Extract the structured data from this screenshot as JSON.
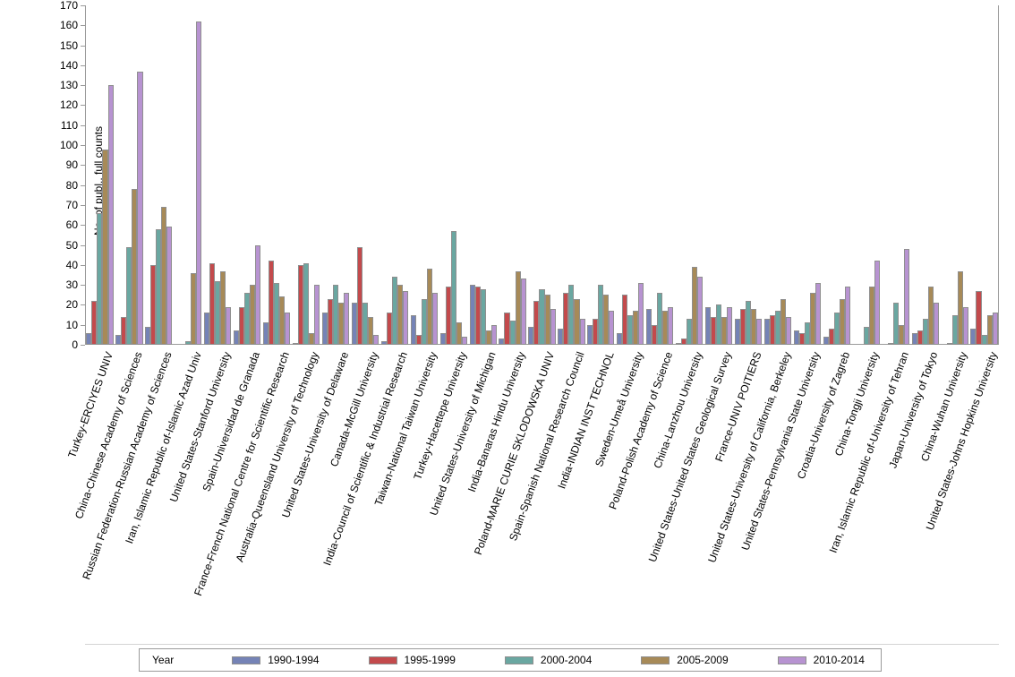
{
  "chart_data": {
    "type": "bar",
    "title": "",
    "ylabel": "No. of publ., full counts",
    "xlabel": "",
    "ylim": [
      0,
      170
    ],
    "ytick_step": 10,
    "yticks": [
      0,
      10,
      20,
      30,
      40,
      50,
      60,
      70,
      80,
      90,
      100,
      110,
      120,
      130,
      140,
      150,
      160,
      170
    ],
    "grid": false,
    "legend_title": "Year",
    "legend_position": "bottom",
    "bar_outline_color": "#8f8f8f",
    "axis_color": "#9a9a9a",
    "categories": [
      "Turkey-ERCIYES UNIV",
      "China-Chinese Academy of Sciences",
      "Russian Federation-Russian Academy of Sciences",
      "Iran, Islamic Republic of-Islamic Azad Univ",
      "United States-Stanford University",
      "Spain-Universidad de Granada",
      "France-French National Centre for Scientific Research",
      "Australia-Queensland University of Technology",
      "United States-University of Delaware",
      "Canada-McGill University",
      "India-Council of Scientific & Industrial Research",
      "Taiwan-National Taiwan University",
      "Turkey-Hacettepe University",
      "United States-University of Michigan",
      "India-Banaras Hindu University",
      "Poland-MARIE CURIE SKLODOWSKA UNIV",
      "Spain-Spanish National Research Council",
      "India-INDIAN INST TECHNOL",
      "Sweden-Umeå University",
      "Poland-Polish Academy of Science",
      "China-Lanzhou University",
      "United States-United States Geological Survey",
      "France-UNIV POITIERS",
      "United States-University of California, Berkeley",
      "United States-Pennsylvania State University",
      "Croatia-University of Zagreb",
      "China-Tongji University",
      "Iran, Islamic Republic of-University of Tehran",
      "Japan-University of Tokyo",
      "China-Wuhan University",
      "United States-Johns Hopkins University"
    ],
    "series": [
      {
        "name": "1990-1994",
        "color": "#7583b6",
        "values": [
          6,
          5,
          9,
          0,
          16,
          7,
          11,
          1,
          16,
          21,
          2,
          15,
          6,
          30,
          3,
          9,
          8,
          10,
          6,
          18,
          1,
          19,
          13,
          13,
          7,
          4,
          0,
          0,
          6,
          0,
          8
        ]
      },
      {
        "name": "1995-1999",
        "color": "#c34a4c",
        "values": [
          22,
          14,
          40,
          0,
          41,
          19,
          42,
          40,
          23,
          49,
          16,
          5,
          29,
          29,
          16,
          22,
          26,
          13,
          25,
          10,
          3,
          14,
          18,
          15,
          6,
          8,
          0,
          1,
          7,
          1,
          27
        ]
      },
      {
        "name": "2000-2004",
        "color": "#6aa7a1",
        "values": [
          66,
          49,
          58,
          2,
          32,
          26,
          31,
          41,
          30,
          21,
          34,
          23,
          57,
          28,
          12,
          28,
          30,
          30,
          15,
          26,
          13,
          20,
          22,
          17,
          11,
          16,
          9,
          21,
          13,
          15,
          5
        ]
      },
      {
        "name": "2005-2009",
        "color": "#a78a58",
        "values": [
          98,
          78,
          69,
          36,
          37,
          30,
          24,
          6,
          21,
          14,
          30,
          38,
          11,
          7,
          37,
          25,
          23,
          25,
          17,
          17,
          39,
          14,
          18,
          23,
          26,
          23,
          29,
          10,
          29,
          37,
          15
        ]
      },
      {
        "name": "2010-2014",
        "color": "#b793d1",
        "values": [
          130,
          137,
          59,
          162,
          19,
          50,
          16,
          30,
          26,
          5,
          27,
          26,
          4,
          10,
          33,
          18,
          13,
          17,
          31,
          19,
          34,
          19,
          13,
          14,
          31,
          29,
          42,
          48,
          21,
          19,
          16
        ]
      }
    ]
  }
}
